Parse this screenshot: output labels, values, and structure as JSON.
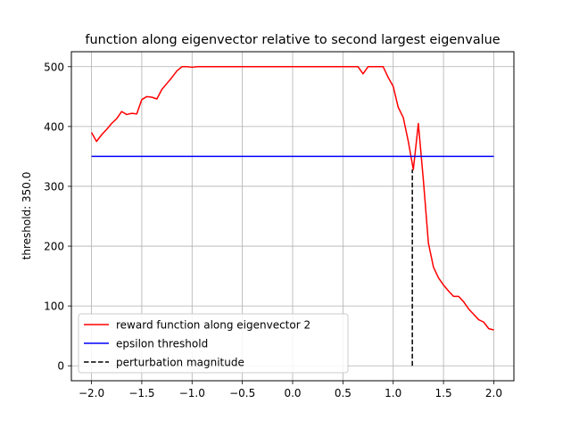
{
  "chart_data": {
    "type": "line",
    "title": "function along eigenvector relative to second largest eigenvalue",
    "xlabel": "",
    "ylabel": "threshold: 350.0",
    "xlim": [
      -2.2,
      2.2
    ],
    "ylim": [
      -25,
      525
    ],
    "xticks": [
      -2.0,
      -1.5,
      -1.0,
      -0.5,
      0.0,
      0.5,
      1.0,
      1.5,
      2.0
    ],
    "xtick_labels": [
      "−2.0",
      "−1.5",
      "−1.0",
      "−0.5",
      "0.0",
      "0.5",
      "1.0",
      "1.5",
      "2.0"
    ],
    "yticks": [
      0,
      100,
      200,
      300,
      400,
      500
    ],
    "ytick_labels": [
      "0",
      "100",
      "200",
      "300",
      "400",
      "500"
    ],
    "grid": true,
    "legend_position": "lower-left",
    "series": [
      {
        "name": "reward function along eigenvector 2",
        "color": "#ff0000",
        "style": "solid",
        "x": [
          -2.0,
          -1.95,
          -1.9,
          -1.85,
          -1.8,
          -1.75,
          -1.7,
          -1.65,
          -1.6,
          -1.55,
          -1.5,
          -1.45,
          -1.4,
          -1.35,
          -1.3,
          -1.25,
          -1.2,
          -1.15,
          -1.1,
          -1.05,
          -1.0,
          -0.95,
          -0.9,
          -0.85,
          -0.8,
          -0.75,
          -0.7,
          -0.65,
          -0.6,
          -0.55,
          -0.5,
          -0.45,
          -0.4,
          -0.35,
          -0.3,
          -0.25,
          -0.2,
          -0.15,
          -0.1,
          -0.05,
          0.0,
          0.05,
          0.1,
          0.15,
          0.2,
          0.25,
          0.3,
          0.35,
          0.4,
          0.45,
          0.5,
          0.55,
          0.6,
          0.65,
          0.7,
          0.75,
          0.8,
          0.85,
          0.9,
          0.95,
          1.0,
          1.05,
          1.1,
          1.15,
          1.2,
          1.25,
          1.3,
          1.35,
          1.4,
          1.45,
          1.5,
          1.55,
          1.6,
          1.65,
          1.7,
          1.75,
          1.8,
          1.85,
          1.9,
          1.95,
          2.0
        ],
        "y": [
          390,
          375,
          386,
          395,
          405,
          413,
          425,
          420,
          422,
          421,
          445,
          450,
          449,
          446,
          462,
          472,
          482,
          493,
          500,
          500,
          499,
          500,
          500,
          500,
          500,
          500,
          500,
          500,
          500,
          500,
          500,
          500,
          500,
          500,
          500,
          500,
          500,
          500,
          500,
          500,
          500,
          500,
          500,
          500,
          500,
          500,
          500,
          500,
          500,
          500,
          500,
          500,
          500,
          500,
          488,
          500,
          500,
          500,
          500,
          482,
          467,
          432,
          415,
          375,
          328,
          405,
          310,
          205,
          165,
          147,
          135,
          125,
          116,
          116,
          107,
          95,
          86,
          77,
          73,
          62,
          60
        ]
      },
      {
        "name": "epsilon threshold",
        "color": "#0000ff",
        "style": "solid",
        "x": [
          -2.0,
          2.0
        ],
        "y": [
          350,
          350
        ]
      },
      {
        "name": "perturbation magnitude",
        "color": "#000000",
        "style": "dashed",
        "x": [
          1.19,
          1.19
        ],
        "y": [
          0,
          328
        ]
      }
    ]
  }
}
